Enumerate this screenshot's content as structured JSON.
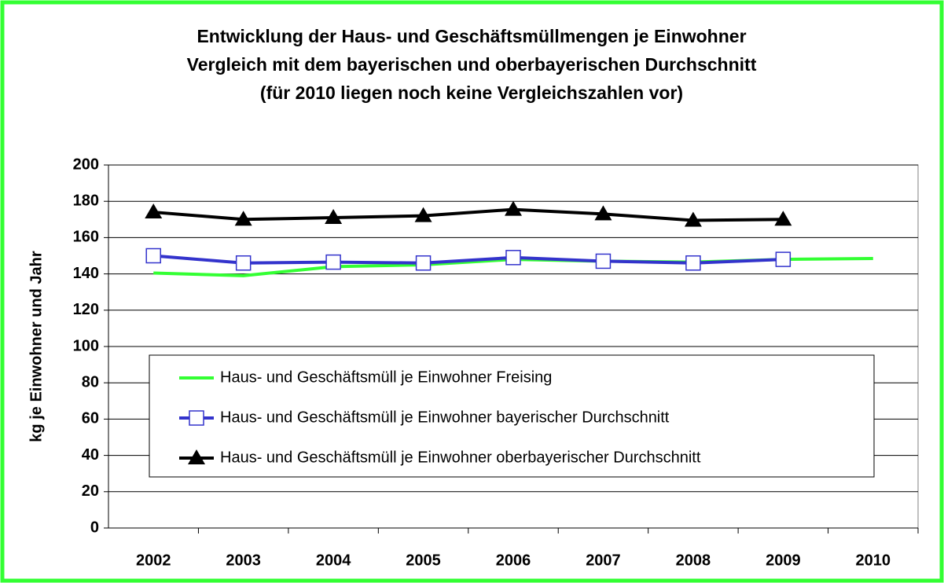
{
  "chart_data": {
    "type": "line",
    "title": [
      "Entwicklung der Haus- und Geschäftsmüllmengen je Einwohner",
      "Vergleich mit dem bayerischen und oberbayerischen Durchschnitt",
      "(für 2010 liegen noch keine Vergleichszahlen vor)"
    ],
    "y_label": "kg je Einwohner und Jahr",
    "categories": [
      "2002",
      "2003",
      "2004",
      "2005",
      "2006",
      "2007",
      "2008",
      "2009",
      "2010"
    ],
    "series": [
      {
        "name": "Haus- und Geschäftsmüll je Einwohner Freising",
        "color": "#33ff33",
        "marker": null,
        "values": [
          140.5,
          139,
          144,
          145,
          148,
          147,
          146.5,
          148,
          148.5
        ]
      },
      {
        "name": "Haus- und Geschäftsmüll je Einwohner bayerischer Durchschnitt",
        "color": "#3333cc",
        "marker": "square",
        "values": [
          150,
          146,
          146.5,
          146,
          149,
          147,
          146,
          148,
          null
        ]
      },
      {
        "name": "Haus- und Geschäftsmüll je Einwohner oberbayerischer Durchschnitt",
        "color": "#000000",
        "marker": "triangle",
        "values": [
          174,
          170,
          171,
          172,
          175.5,
          173,
          169.5,
          170,
          null
        ]
      }
    ],
    "ylim": [
      0,
      200
    ],
    "yticks": [
      0,
      20,
      40,
      60,
      80,
      100,
      120,
      140,
      160,
      180,
      200
    ],
    "grid": true
  }
}
